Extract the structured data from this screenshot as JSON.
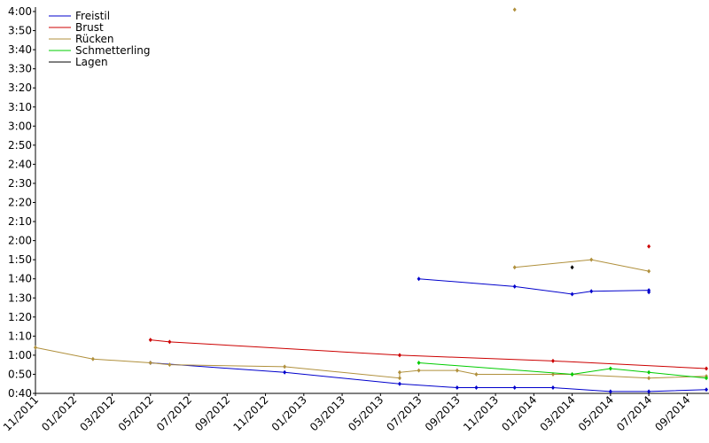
{
  "chart_data": {
    "type": "line",
    "xlim": [
      "2011-11",
      "2014-10"
    ],
    "ylim": [
      40,
      240
    ],
    "xticks": [
      {
        "value": "2011-11",
        "label": "11/2011"
      },
      {
        "value": "2012-01",
        "label": "01/2012"
      },
      {
        "value": "2012-03",
        "label": "03/2012"
      },
      {
        "value": "2012-05",
        "label": "05/2012"
      },
      {
        "value": "2012-07",
        "label": "07/2012"
      },
      {
        "value": "2012-09",
        "label": "09/2012"
      },
      {
        "value": "2012-11",
        "label": "11/2012"
      },
      {
        "value": "2013-01",
        "label": "01/2013"
      },
      {
        "value": "2013-03",
        "label": "03/2013"
      },
      {
        "value": "2013-05",
        "label": "05/2013"
      },
      {
        "value": "2013-07",
        "label": "07/2013"
      },
      {
        "value": "2013-09",
        "label": "09/2013"
      },
      {
        "value": "2013-11",
        "label": "11/2013"
      },
      {
        "value": "2014-01",
        "label": "01/2014"
      },
      {
        "value": "2014-03",
        "label": "03/2014"
      },
      {
        "value": "2014-05",
        "label": "05/2014"
      },
      {
        "value": "2014-07",
        "label": "07/2014"
      },
      {
        "value": "2014-09",
        "label": "09/2014"
      }
    ],
    "yticks": [
      {
        "value": 40,
        "label": "0:40"
      },
      {
        "value": 50,
        "label": "0:50"
      },
      {
        "value": 60,
        "label": "1:00"
      },
      {
        "value": 70,
        "label": "1:10"
      },
      {
        "value": 80,
        "label": "1:20"
      },
      {
        "value": 90,
        "label": "1:30"
      },
      {
        "value": 100,
        "label": "1:40"
      },
      {
        "value": 110,
        "label": "1:50"
      },
      {
        "value": 120,
        "label": "2:00"
      },
      {
        "value": 130,
        "label": "2:10"
      },
      {
        "value": 140,
        "label": "2:20"
      },
      {
        "value": 150,
        "label": "2:30"
      },
      {
        "value": 160,
        "label": "2:40"
      },
      {
        "value": 170,
        "label": "2:50"
      },
      {
        "value": 180,
        "label": "3:00"
      },
      {
        "value": 190,
        "label": "3:10"
      },
      {
        "value": 200,
        "label": "3:20"
      },
      {
        "value": 210,
        "label": "3:30"
      },
      {
        "value": 220,
        "label": "3:40"
      },
      {
        "value": 230,
        "label": "3:50"
      },
      {
        "value": 240,
        "label": "4:00"
      }
    ],
    "legend": "upper left",
    "series": [
      {
        "name": "Freistil",
        "color": "#0000cc",
        "lines": [
          {
            "x": [
              "2012-05",
              "2012-12",
              "2013-06",
              "2013-09",
              "2013-10",
              "2013-12",
              "2014-02",
              "2014-05",
              "2014-07",
              "2014-10"
            ],
            "values": [
              56,
              51,
              45,
              43,
              43,
              43,
              43,
              41,
              41,
              42
            ]
          },
          {
            "x": [
              "2013-07",
              "2013-12",
              "2014-03",
              "2014-04",
              "2014-07",
              "2014-07"
            ],
            "values": [
              100,
              96,
              92,
              93.5,
              94,
              93
            ]
          }
        ]
      },
      {
        "name": "Brust",
        "color": "#cc0000",
        "lines": [
          {
            "x": [
              "2012-05",
              "2012-06",
              "2013-06",
              "2014-02",
              "2014-10"
            ],
            "values": [
              68,
              67,
              60,
              57,
              53
            ]
          },
          {
            "x": [
              "2014-07"
            ],
            "values": [
              117
            ]
          }
        ]
      },
      {
        "name": "Rücken",
        "color": "#b0903c",
        "lines": [
          {
            "x": [
              "2011-11",
              "2012-02",
              "2012-05",
              "2012-06",
              "2012-12",
              "2013-06",
              "2013-06",
              "2013-07",
              "2013-09",
              "2013-10",
              "2014-02",
              "2014-03",
              "2014-07",
              "2014-10"
            ],
            "values": [
              64,
              58,
              56,
              55,
              54,
              48,
              51,
              52,
              52,
              50,
              50,
              50,
              48,
              49
            ]
          },
          {
            "x": [
              "2013-12",
              "2014-04",
              "2014-07"
            ],
            "values": [
              106,
              110,
              104
            ]
          },
          {
            "x": [
              "2013-12"
            ],
            "values": [
              241
            ]
          }
        ]
      },
      {
        "name": "Schmetterling",
        "color": "#00cc00",
        "lines": [
          {
            "x": [
              "2013-07",
              "2014-03",
              "2014-05",
              "2014-07",
              "2014-10"
            ],
            "values": [
              56,
              50,
              53,
              51,
              48
            ]
          }
        ]
      },
      {
        "name": "Lagen",
        "color": "#000000",
        "lines": [
          {
            "x": [
              "2014-03"
            ],
            "values": [
              106
            ]
          }
        ]
      }
    ]
  }
}
